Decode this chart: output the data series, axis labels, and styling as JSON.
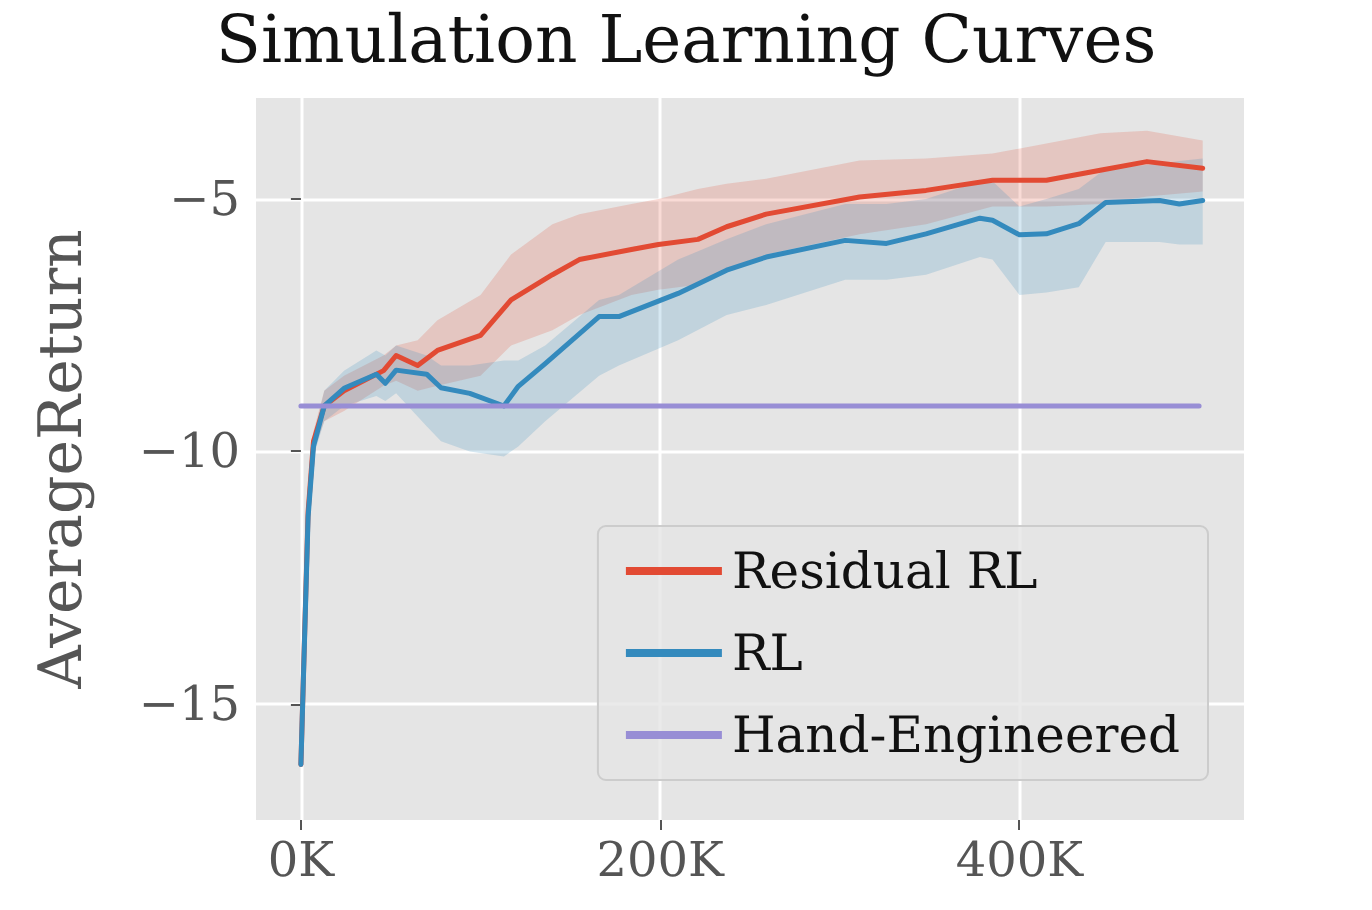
{
  "chart_data": {
    "type": "line",
    "title": "Simulation Learning Curves",
    "ylabel": "AverageReturn",
    "xlim": [
      -25000,
      525000
    ],
    "xticks": [
      {
        "value": 0,
        "label": "0K"
      },
      {
        "value": 200000,
        "label": "200K"
      },
      {
        "value": 400000,
        "label": "400K"
      }
    ],
    "ylim": [
      -17.3,
      -3.0
    ],
    "yticks": [
      {
        "value": -15,
        "label": "−15"
      },
      {
        "value": -10,
        "label": "−10"
      },
      {
        "value": -5,
        "label": "−5"
      }
    ],
    "grid": true,
    "legend": "bottom right",
    "series": [
      {
        "name": "Residual RL",
        "color": "#e24a33",
        "x": [
          0,
          4000,
          7000,
          13000,
          24000,
          46000,
          53000,
          65000,
          76000,
          100000,
          117000,
          140000,
          155000,
          184000,
          199000,
          221000,
          237000,
          259000,
          311000,
          348000,
          385000,
          415000,
          445000,
          471000,
          502000
        ],
        "values": [
          -16.2,
          -11.2,
          -9.8,
          -9.1,
          -8.8,
          -8.4,
          -8.1,
          -8.3,
          -8.0,
          -7.7,
          -7.0,
          -6.5,
          -6.2,
          -6.0,
          -5.9,
          -5.8,
          -5.55,
          -5.3,
          -4.96,
          -4.83,
          -4.63,
          -4.63,
          -4.43,
          -4.26,
          -4.39
        ],
        "upper": [
          -16.2,
          -11.0,
          -9.6,
          -8.8,
          -8.5,
          -8.1,
          -7.9,
          -7.8,
          -7.4,
          -6.9,
          -6.1,
          -5.5,
          -5.3,
          -5.1,
          -5.0,
          -4.8,
          -4.7,
          -4.6,
          -4.24,
          -4.2,
          -4.1,
          -3.9,
          -3.7,
          -3.65,
          -3.84
        ],
        "lower": [
          -16.2,
          -11.4,
          -10.0,
          -9.4,
          -9.2,
          -8.7,
          -8.6,
          -8.8,
          -8.7,
          -8.5,
          -7.9,
          -7.6,
          -7.3,
          -6.9,
          -6.8,
          -6.7,
          -6.4,
          -6.1,
          -5.7,
          -5.5,
          -5.15,
          -5.15,
          -5.1,
          -4.95,
          -4.85
        ]
      },
      {
        "name": "RL",
        "color": "#348abd",
        "x": [
          0,
          4000,
          7000,
          13000,
          24000,
          42000,
          47000,
          53000,
          70000,
          78000,
          94000,
          113000,
          121000,
          136000,
          166000,
          177000,
          210000,
          237000,
          259000,
          303000,
          326000,
          348000,
          378000,
          385000,
          400000,
          415000,
          433000,
          448000,
          478000,
          489000,
          502000
        ],
        "values": [
          -16.2,
          -11.3,
          -9.9,
          -9.1,
          -8.75,
          -8.47,
          -8.65,
          -8.39,
          -8.47,
          -8.74,
          -8.85,
          -9.1,
          -8.71,
          -8.26,
          -7.33,
          -7.33,
          -6.87,
          -6.41,
          -6.15,
          -5.82,
          -5.88,
          -5.69,
          -5.38,
          -5.42,
          -5.71,
          -5.69,
          -5.49,
          -5.07,
          -5.03,
          -5.1,
          -5.03
        ],
        "upper": [
          -16.2,
          -11.1,
          -9.7,
          -8.8,
          -8.4,
          -8.0,
          -8.1,
          -7.9,
          -8.1,
          -8.3,
          -8.3,
          -8.2,
          -8.2,
          -7.9,
          -7.0,
          -6.9,
          -6.2,
          -5.8,
          -5.5,
          -5.1,
          -5.1,
          -5.0,
          -4.65,
          -4.65,
          -5.15,
          -5.0,
          -4.8,
          -4.4,
          -4.3,
          -4.25,
          -4.2
        ],
        "lower": [
          -16.2,
          -11.5,
          -10.1,
          -9.4,
          -9.1,
          -8.9,
          -9.0,
          -8.85,
          -9.5,
          -9.8,
          -10.0,
          -10.1,
          -9.9,
          -9.4,
          -8.5,
          -8.3,
          -7.8,
          -7.3,
          -7.1,
          -6.6,
          -6.6,
          -6.5,
          -6.15,
          -6.2,
          -6.9,
          -6.85,
          -6.75,
          -5.85,
          -5.85,
          -5.9,
          -5.9
        ]
      },
      {
        "name": "Hand-Engineered",
        "color": "#988ed5",
        "x": [
          0,
          500000
        ],
        "values": [
          -9.1,
          -9.1
        ]
      }
    ]
  }
}
